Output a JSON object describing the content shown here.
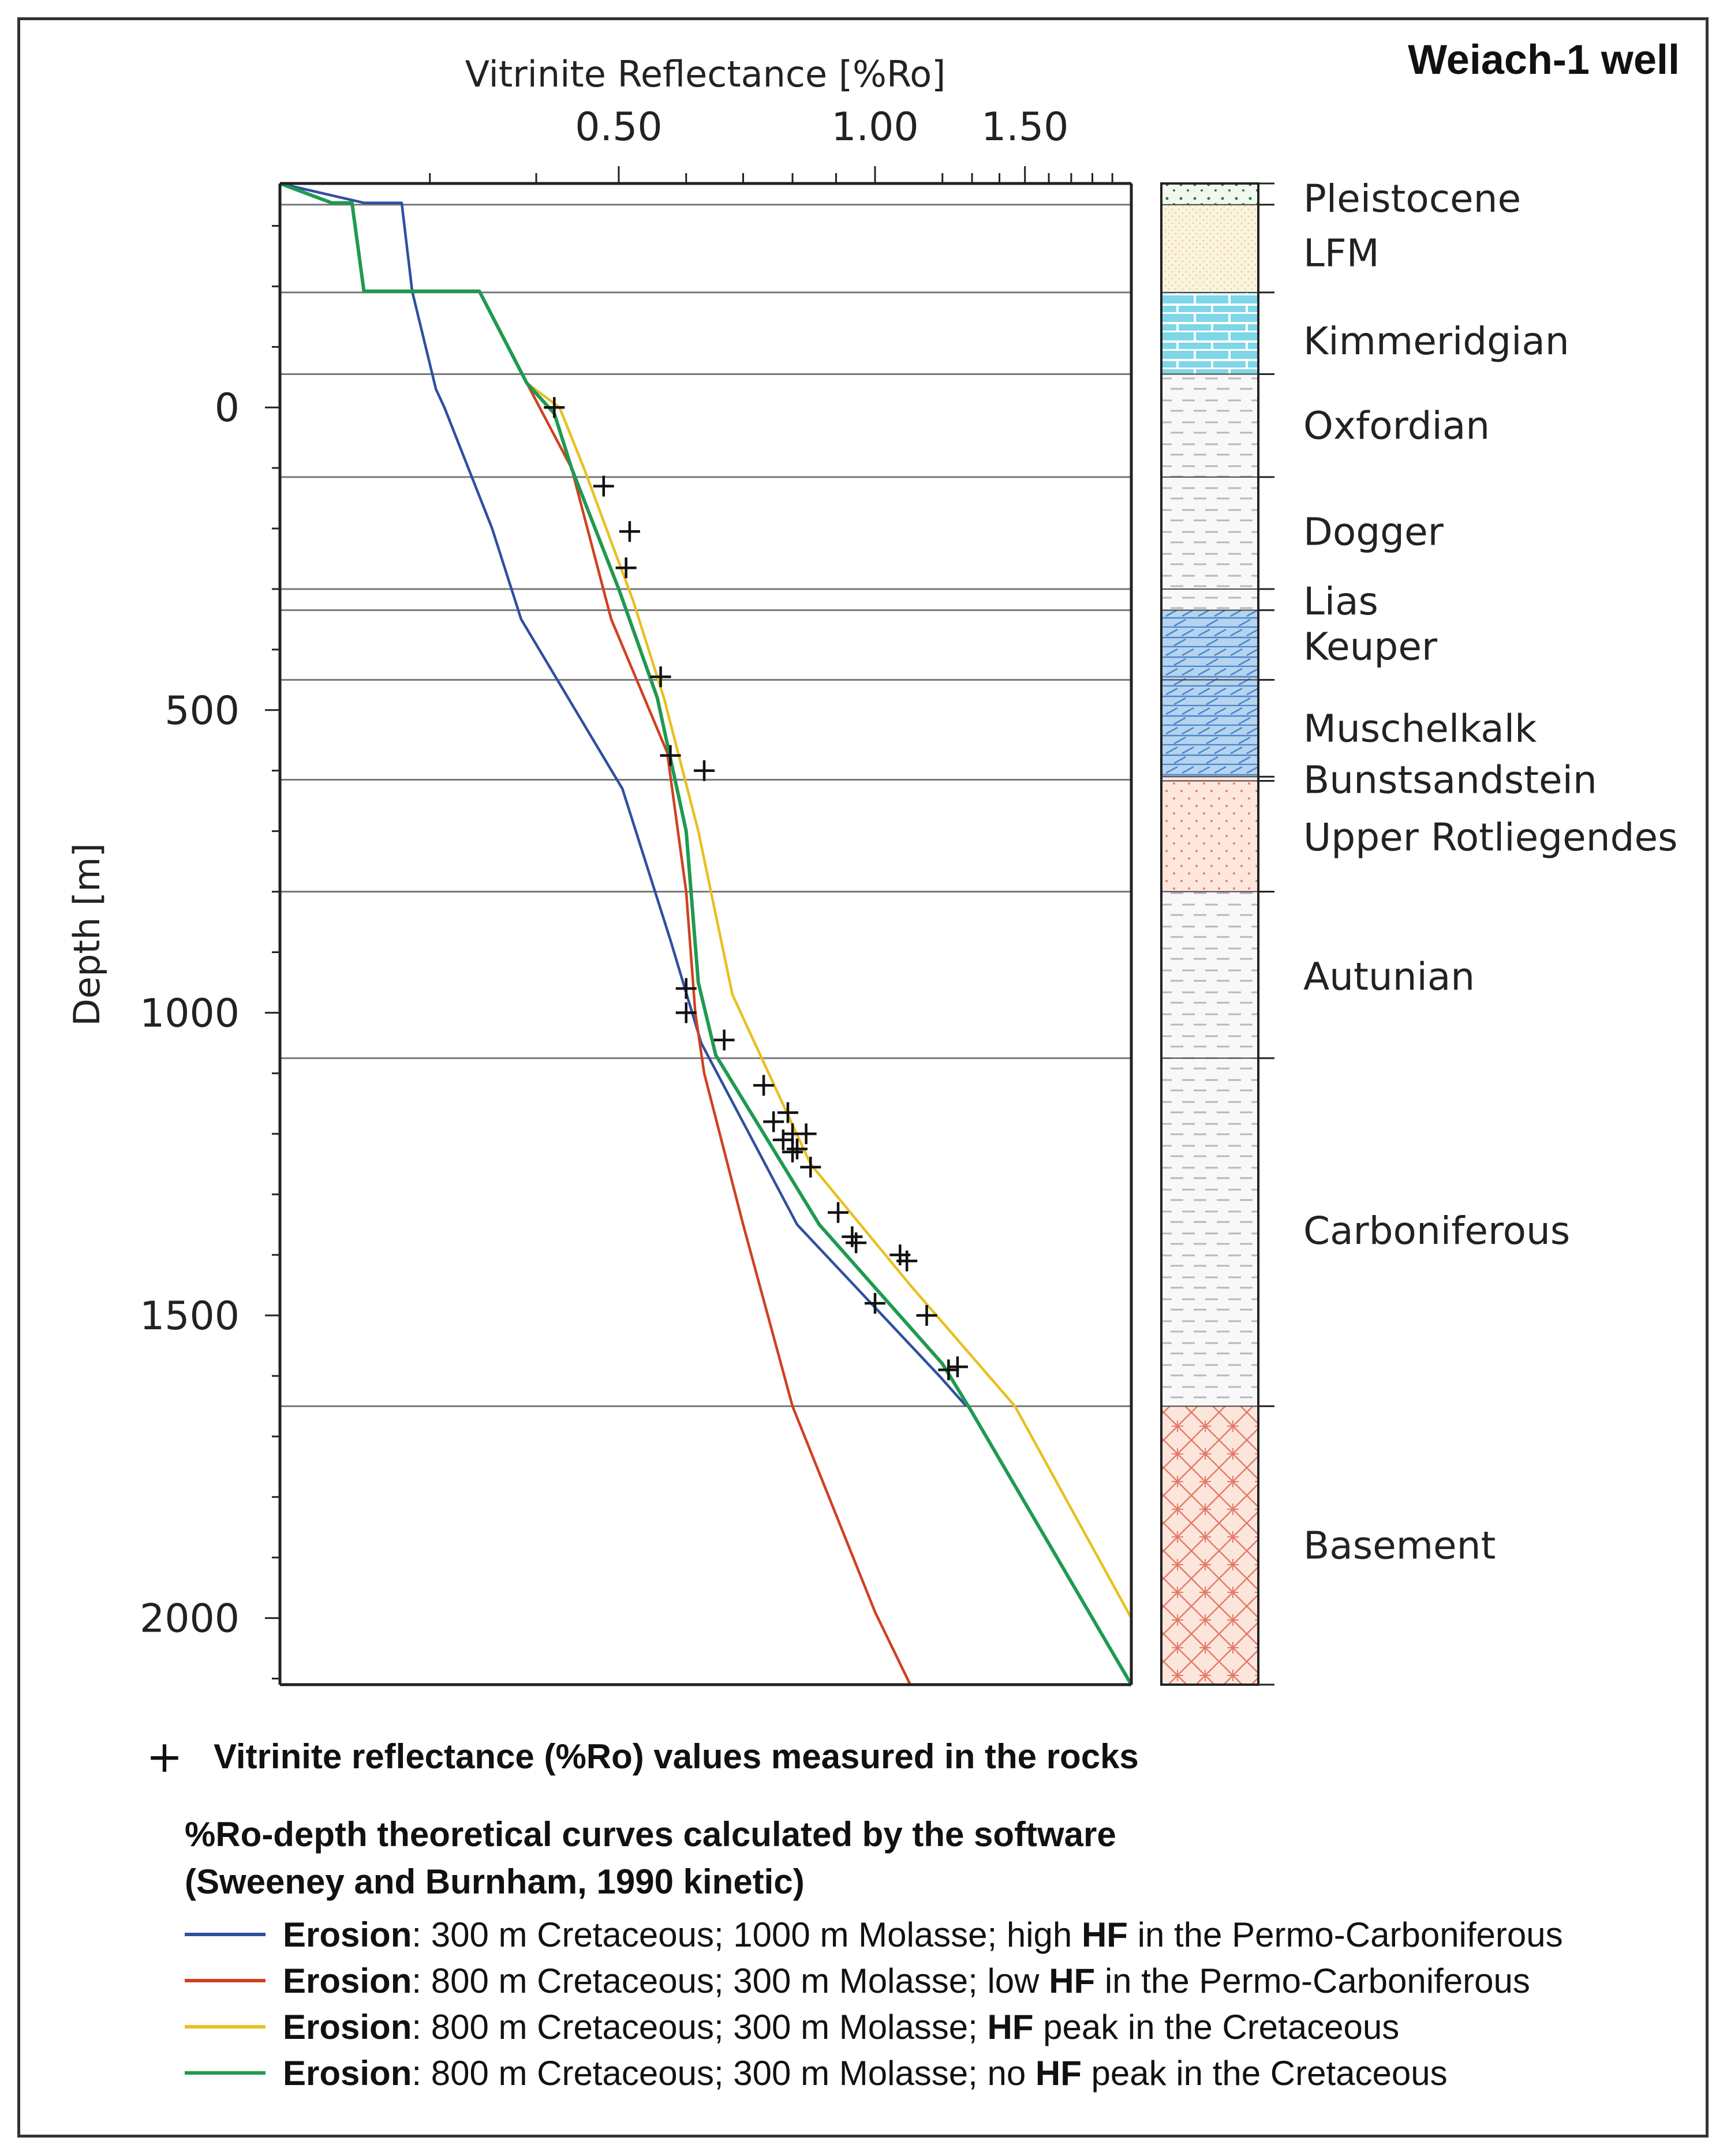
{
  "chart_data": {
    "type": "line",
    "title": "Weiach-1 well",
    "xlabel": "Vitrinite Reflectance [%Ro]",
    "ylabel": "Depth [m]",
    "x_scale": "log",
    "xlim": [
      0.2,
      2.0
    ],
    "ylim": [
      -370,
      2110
    ],
    "x_ticks": [
      0.5,
      1.0,
      1.5
    ],
    "x_tick_labels": [
      "0.50",
      "1.00",
      "1.50"
    ],
    "y_ticks": [
      0,
      500,
      1000,
      1500,
      2000
    ],
    "y_tick_labels": [
      "0",
      "500",
      "1000",
      "1500",
      "2000"
    ],
    "horizons": [
      -335,
      -190,
      -55,
      115,
      300,
      335,
      450,
      615,
      800,
      1075,
      1650
    ],
    "units": [
      {
        "name": "Pleistocene",
        "top": -370,
        "bottom": -335,
        "pattern": "quaternary",
        "label_depth": -345
      },
      {
        "name": "LFM",
        "top": -335,
        "bottom": -190,
        "pattern": "molasse",
        "label_depth": -255
      },
      {
        "name": "Kimmeridgian",
        "top": -190,
        "bottom": -55,
        "pattern": "limestone",
        "label_depth": -110
      },
      {
        "name": "Oxfordian",
        "top": -55,
        "bottom": 115,
        "pattern": "marl",
        "label_depth": 30
      },
      {
        "name": "Dogger",
        "top": 115,
        "bottom": 300,
        "pattern": "marl",
        "label_depth": 205
      },
      {
        "name": "Lias",
        "top": 300,
        "bottom": 335,
        "pattern": "marl",
        "label_depth": 320
      },
      {
        "name": "Keuper",
        "top": 335,
        "bottom": 450,
        "pattern": "dolomite",
        "label_depth": 395
      },
      {
        "name": "Muschelkalk",
        "top": 450,
        "bottom": 610,
        "pattern": "dolomite",
        "label_depth": 530
      },
      {
        "name": "Bunstsandstein",
        "top": 610,
        "bottom": 617,
        "pattern": "sandstone",
        "label_depth": 615
      },
      {
        "name": "Upper Rotliegendes",
        "top": 617,
        "bottom": 800,
        "pattern": "sandstone",
        "label_depth": 710
      },
      {
        "name": "Autunian",
        "top": 800,
        "bottom": 1075,
        "pattern": "marl",
        "label_depth": 940
      },
      {
        "name": "Carboniferous",
        "top": 1075,
        "bottom": 1650,
        "pattern": "marl",
        "label_depth": 1360
      },
      {
        "name": "Basement",
        "top": 1650,
        "bottom": 2110,
        "pattern": "crystalline",
        "label_depth": 1880
      }
    ],
    "series": [
      {
        "name": "Erosion: 300 m Cretaceous; 1000 m Molasse; high HF in the Permo-Carboniferous",
        "color": "#2f4f9f",
        "points": [
          [
            0.2,
            -370
          ],
          [
            0.251,
            -338
          ],
          [
            0.278,
            -338
          ],
          [
            0.286,
            -192
          ],
          [
            0.305,
            -30
          ],
          [
            0.312,
            0
          ],
          [
            0.355,
            200
          ],
          [
            0.384,
            350
          ],
          [
            0.505,
            630
          ],
          [
            0.575,
            880
          ],
          [
            0.625,
            1050
          ],
          [
            0.81,
            1350
          ],
          [
            1.19,
            1600
          ],
          [
            1.28,
            1650
          ]
        ]
      },
      {
        "name": "Erosion: 800 m Cretaceous; 300 m Molasse; low HF in the Permo-Carboniferous",
        "color": "#d04020",
        "points": [
          [
            0.2,
            -370
          ],
          [
            0.23,
            -338
          ],
          [
            0.243,
            -338
          ],
          [
            0.251,
            -192
          ],
          [
            0.343,
            -192
          ],
          [
            0.39,
            -40
          ],
          [
            0.44,
            100
          ],
          [
            0.49,
            350
          ],
          [
            0.57,
            570
          ],
          [
            0.6,
            800
          ],
          [
            0.615,
            1000
          ],
          [
            0.63,
            1100
          ],
          [
            0.7,
            1350
          ],
          [
            0.8,
            1650
          ],
          [
            1.0,
            1990
          ],
          [
            1.1,
            2110
          ]
        ]
      },
      {
        "name": "Erosion: 800 m Cretaceous; 300 m Molasse; HF peak in the Cretaceous",
        "color": "#e8c020",
        "points": [
          [
            0.2,
            -370
          ],
          [
            0.23,
            -338
          ],
          [
            0.243,
            -338
          ],
          [
            0.251,
            -192
          ],
          [
            0.343,
            -192
          ],
          [
            0.39,
            -40
          ],
          [
            0.426,
            0
          ],
          [
            0.455,
            100
          ],
          [
            0.52,
            320
          ],
          [
            0.565,
            480
          ],
          [
            0.62,
            700
          ],
          [
            0.68,
            970
          ],
          [
            0.84,
            1250
          ],
          [
            1.1,
            1450
          ],
          [
            1.46,
            1650
          ],
          [
            2.0,
            2000
          ]
        ]
      },
      {
        "name": "Erosion: 800 m Cretaceous; 300 m Molasse; no HF peak in the Cretaceous",
        "color": "#1f9a4f",
        "points": [
          [
            0.2,
            -370
          ],
          [
            0.23,
            -338
          ],
          [
            0.243,
            -338
          ],
          [
            0.251,
            -192
          ],
          [
            0.343,
            -192
          ],
          [
            0.39,
            -40
          ],
          [
            0.42,
            10
          ],
          [
            0.44,
            100
          ],
          [
            0.5,
            300
          ],
          [
            0.555,
            480
          ],
          [
            0.6,
            700
          ],
          [
            0.62,
            950
          ],
          [
            0.65,
            1070
          ],
          [
            0.86,
            1350
          ],
          [
            1.2,
            1580
          ],
          [
            1.3,
            1660
          ],
          [
            2.0,
            2110
          ]
        ]
      }
    ],
    "measured": [
      [
        0.42,
        0
      ],
      [
        0.48,
        130
      ],
      [
        0.515,
        205
      ],
      [
        0.51,
        265
      ],
      [
        0.56,
        445
      ],
      [
        0.575,
        575
      ],
      [
        0.63,
        600
      ],
      [
        0.6,
        960
      ],
      [
        0.6,
        1000
      ],
      [
        0.665,
        1045
      ],
      [
        0.74,
        1120
      ],
      [
        0.76,
        1180
      ],
      [
        0.79,
        1165
      ],
      [
        0.8,
        1200
      ],
      [
        0.78,
        1210
      ],
      [
        0.81,
        1225
      ],
      [
        0.83,
        1200
      ],
      [
        0.8,
        1230
      ],
      [
        0.84,
        1255
      ],
      [
        0.905,
        1330
      ],
      [
        0.94,
        1370
      ],
      [
        0.95,
        1380
      ],
      [
        1.07,
        1400
      ],
      [
        1.09,
        1410
      ],
      [
        1.0,
        1480
      ],
      [
        1.15,
        1500
      ],
      [
        1.25,
        1585
      ],
      [
        1.22,
        1590
      ]
    ]
  },
  "legend": {
    "plus_symbol": "+",
    "measured_text": "Vitrinite reflectance (%Ro) values measured in the rocks",
    "header_line1": "%Ro-depth theoretical curves calculated by the software",
    "header_line2": "(Sweeney and Burnham, 1990 kinetic)",
    "entries": [
      {
        "key": "Erosion",
        "rest1": ": 300 m Cretaceous; 1000 m Molasse; high ",
        "bold2": "HF",
        "rest2": " in the Permo-Carboniferous",
        "color": "#2f4f9f"
      },
      {
        "key": "Erosion",
        "rest1": ": 800 m Cretaceous; 300 m Molasse; low ",
        "bold2": "HF",
        "rest2": " in the Permo-Carboniferous",
        "color": "#d04020"
      },
      {
        "key": "Erosion",
        "rest1": ": 800 m Cretaceous; 300 m Molasse; ",
        "bold2": "HF",
        "rest2": " peak in the Cretaceous",
        "color": "#e8c020"
      },
      {
        "key": "Erosion",
        "rest1": ": 800 m Cretaceous; 300 m Molasse; no ",
        "bold2": "HF",
        "rest2": " peak in the Cretaceous",
        "color": "#1f9a4f"
      }
    ]
  }
}
